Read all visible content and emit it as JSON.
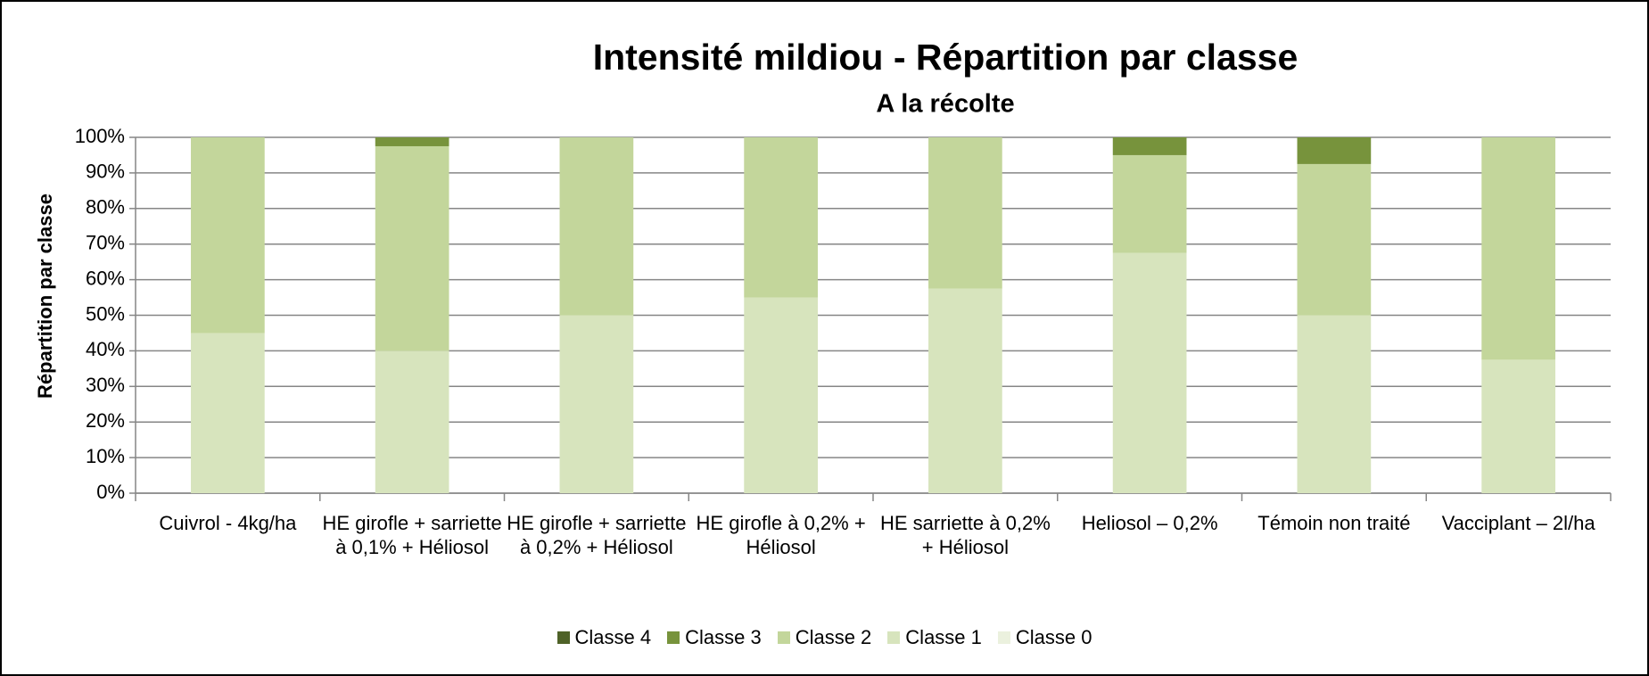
{
  "chart_data": {
    "type": "stacked_bar",
    "title": "Intensité mildiou - Répartition par classe",
    "subtitle": "A la récolte",
    "y_label": "Répartition par classe",
    "categories": [
      "Cuivrol - 4kg/ha",
      "HE girofle + sarriette à 0,1% + Héliosol",
      "HE girofle  + sarriette à 0,2% + Héliosol",
      "HE girofle à 0,2% + Héliosol",
      "HE sarriette à 0,2%  + Héliosol",
      "Heliosol – 0,2%",
      "Témoin non traité",
      "Vacciplant – 2l/ha"
    ],
    "series": [
      {
        "name": "Classe 0",
        "color": "#ebf1de",
        "values": [
          0,
          0,
          0,
          0,
          0,
          0,
          0,
          0
        ]
      },
      {
        "name": "Classe 1",
        "color": "#d7e4bd",
        "values": [
          45,
          40,
          50,
          55,
          57.5,
          67.5,
          50,
          37.5
        ]
      },
      {
        "name": "Classe 2",
        "color": "#c3d69b",
        "values": [
          55,
          57.5,
          50,
          45,
          42.5,
          27.5,
          42.5,
          62.5
        ]
      },
      {
        "name": "Classe 3",
        "color": "#77933c",
        "values": [
          0,
          2.5,
          0,
          0,
          0,
          5,
          7.5,
          0
        ]
      },
      {
        "name": "Classe 4",
        "color": "#4f6228",
        "values": [
          0,
          0,
          0,
          0,
          0,
          0,
          0,
          0
        ]
      }
    ],
    "ylim": [
      0,
      100
    ],
    "yticks": [
      {
        "value": 0,
        "label": "0%"
      },
      {
        "value": 10,
        "label": "10%"
      },
      {
        "value": 20,
        "label": "20%"
      },
      {
        "value": 30,
        "label": "30%"
      },
      {
        "value": 40,
        "label": "40%"
      },
      {
        "value": 50,
        "label": "50%"
      },
      {
        "value": 60,
        "label": "60%"
      },
      {
        "value": 70,
        "label": "70%"
      },
      {
        "value": 80,
        "label": "80%"
      },
      {
        "value": 90,
        "label": "90%"
      },
      {
        "value": 100,
        "label": "100%"
      }
    ],
    "grid": true,
    "legend": "bottom"
  }
}
